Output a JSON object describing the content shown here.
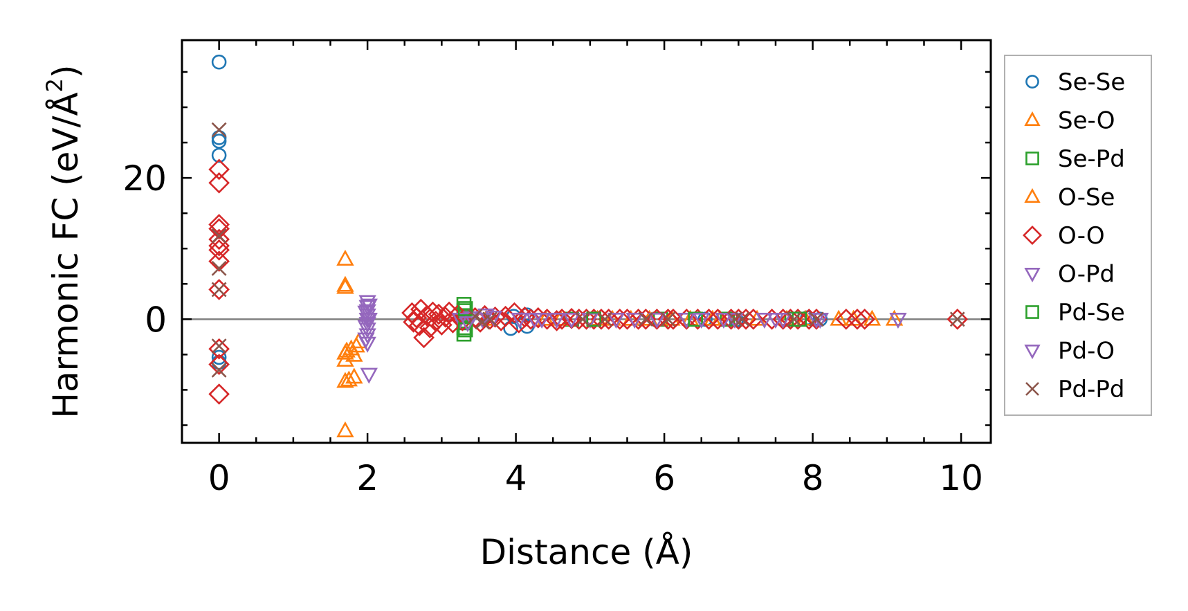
{
  "chart_data": {
    "type": "scatter",
    "xlabel": "Distance (Å)",
    "ylabel_main": "Harmonic FC (eV/Å",
    "ylabel_sup": "2",
    "ylabel_close": ")",
    "xlim": [
      -0.5,
      10.4
    ],
    "ylim": [
      -17.5,
      39.5
    ],
    "xticks": [
      0,
      2,
      4,
      6,
      8,
      10
    ],
    "yticks": [
      0,
      20
    ],
    "xtick_labels": [
      "0",
      "2",
      "4",
      "6",
      "8",
      "10"
    ],
    "ytick_labels": [
      "0",
      "20"
    ],
    "x_minor_step": 0.5,
    "y_minor_step": 5,
    "zero_line": true,
    "legend_position": "outside-right",
    "series": [
      {
        "name": "Se-Se",
        "marker": "circle",
        "color": "#1f77b4",
        "points": [
          [
            0,
            36.4
          ],
          [
            0,
            25.7
          ],
          [
            0,
            25.2
          ],
          [
            0,
            23.2
          ],
          [
            0,
            -5.4
          ],
          [
            0,
            -6.1
          ],
          [
            3.93,
            -1.3
          ],
          [
            3.97,
            0.4
          ],
          [
            4.15,
            0.6
          ],
          [
            4.15,
            -1.0
          ],
          [
            6.55,
            0.0
          ],
          [
            6.97,
            -0.1
          ],
          [
            7.93,
            0.2
          ],
          [
            8.1,
            0.0
          ]
        ]
      },
      {
        "name": "Se-O",
        "marker": "triangle-up",
        "color": "#ff7f0e",
        "points": [
          [
            1.7,
            8.5
          ],
          [
            1.7,
            4.8
          ],
          [
            1.7,
            4.5
          ],
          [
            1.7,
            -4.8
          ],
          [
            1.7,
            -5.8
          ],
          [
            1.7,
            -8.8
          ],
          [
            1.7,
            -15.8
          ],
          [
            1.78,
            -4.2
          ],
          [
            1.82,
            -5.1
          ],
          [
            1.85,
            -3.8
          ],
          [
            1.88,
            -3.2
          ],
          [
            1.82,
            -8.2
          ],
          [
            4.4,
            0.0
          ],
          [
            5.3,
            0.0
          ],
          [
            5.8,
            0.0
          ],
          [
            6.35,
            0.0
          ],
          [
            6.75,
            0.0
          ],
          [
            7.65,
            0.0
          ],
          [
            8.35,
            0.0
          ],
          [
            8.8,
            0.0
          ],
          [
            9.1,
            0.0
          ]
        ]
      },
      {
        "name": "Se-Pd",
        "marker": "square",
        "color": "#2ca02c",
        "points": [
          [
            3.3,
            2.1
          ],
          [
            3.3,
            1.2
          ],
          [
            3.3,
            0.5
          ],
          [
            3.3,
            -0.5
          ],
          [
            3.3,
            -1.2
          ],
          [
            3.3,
            -2.1
          ],
          [
            4.75,
            0.0
          ],
          [
            5.95,
            0.0
          ],
          [
            6.85,
            0.0
          ],
          [
            7.72,
            0.0
          ]
        ]
      },
      {
        "name": "O-Se",
        "marker": "triangle-up",
        "color": "#ff7f0e",
        "points": [
          [
            1.72,
            -4.5
          ],
          [
            1.75,
            -8.6
          ],
          [
            3.6,
            0.0
          ],
          [
            4.6,
            0.0
          ],
          [
            5.1,
            0.0
          ],
          [
            5.55,
            0.0
          ],
          [
            6.1,
            0.0
          ],
          [
            6.65,
            0.0
          ],
          [
            7.25,
            0.0
          ],
          [
            7.9,
            0.0
          ],
          [
            8.55,
            0.0
          ]
        ]
      },
      {
        "name": "O-O",
        "marker": "diamond",
        "color": "#d62728",
        "points": [
          [
            0,
            21.2
          ],
          [
            0,
            19.3
          ],
          [
            0,
            13.4
          ],
          [
            0,
            12.8
          ],
          [
            0,
            11.3
          ],
          [
            0,
            10.4
          ],
          [
            0,
            9.8
          ],
          [
            0,
            8.2
          ],
          [
            0,
            4.2
          ],
          [
            0,
            -4.2
          ],
          [
            0,
            -6.4
          ],
          [
            0,
            -10.6
          ],
          [
            2.6,
            0.9
          ],
          [
            2.62,
            -0.4
          ],
          [
            2.66,
            0.2
          ],
          [
            2.7,
            -0.9
          ],
          [
            2.72,
            1.4
          ],
          [
            2.76,
            -2.6
          ],
          [
            2.8,
            0.5
          ],
          [
            2.84,
            -1.2
          ],
          [
            2.88,
            1.0
          ],
          [
            2.92,
            -0.3
          ],
          [
            2.96,
            0.7
          ],
          [
            3.0,
            -0.8
          ],
          [
            3.05,
            0.3
          ],
          [
            3.1,
            1.0
          ],
          [
            3.15,
            -0.5
          ],
          [
            3.22,
            0.6
          ],
          [
            3.28,
            -0.2
          ],
          [
            3.45,
            0.2
          ],
          [
            3.52,
            -0.4
          ],
          [
            3.58,
            0.5
          ],
          [
            3.65,
            0.0
          ],
          [
            3.72,
            0.3
          ],
          [
            3.8,
            -0.2
          ],
          [
            3.86,
            0.4
          ],
          [
            3.98,
            0.9
          ],
          [
            4.04,
            -0.5
          ],
          [
            4.12,
            0.3
          ],
          [
            4.2,
            0.0
          ],
          [
            4.3,
            0.2
          ],
          [
            4.42,
            0.0
          ],
          [
            4.55,
            -0.2
          ],
          [
            4.62,
            0.0
          ],
          [
            4.75,
            0.1
          ],
          [
            4.85,
            0.0
          ],
          [
            4.95,
            0.0
          ],
          [
            5.05,
            0.0
          ],
          [
            5.15,
            0.0
          ],
          [
            5.25,
            0.0
          ],
          [
            5.4,
            0.0
          ],
          [
            5.5,
            0.0
          ],
          [
            5.65,
            0.0
          ],
          [
            5.75,
            0.0
          ],
          [
            5.9,
            0.0
          ],
          [
            6.05,
            0.0
          ],
          [
            6.12,
            0.0
          ],
          [
            6.3,
            0.0
          ],
          [
            6.45,
            0.0
          ],
          [
            6.6,
            0.0
          ],
          [
            6.72,
            0.0
          ],
          [
            6.9,
            0.0
          ],
          [
            7.0,
            0.0
          ],
          [
            7.1,
            0.0
          ],
          [
            7.2,
            0.0
          ],
          [
            7.45,
            0.0
          ],
          [
            7.6,
            0.0
          ],
          [
            7.7,
            0.0
          ],
          [
            7.8,
            0.0
          ],
          [
            7.95,
            0.0
          ],
          [
            8.05,
            0.0
          ],
          [
            8.45,
            0.0
          ],
          [
            8.6,
            0.0
          ],
          [
            8.7,
            0.0
          ],
          [
            9.95,
            0.0
          ]
        ]
      },
      {
        "name": "O-Pd",
        "marker": "triangle-down",
        "color": "#9467bd",
        "points": [
          [
            2.0,
            2.5
          ],
          [
            2.0,
            1.8
          ],
          [
            2.0,
            1.2
          ],
          [
            2.0,
            0.6
          ],
          [
            2.0,
            0.0
          ],
          [
            2.0,
            -0.6
          ],
          [
            2.0,
            -1.4
          ],
          [
            2.0,
            -2.2
          ],
          [
            2.0,
            -3.4
          ],
          [
            2.02,
            -7.8
          ],
          [
            3.25,
            0.0
          ],
          [
            3.4,
            0.2
          ],
          [
            3.55,
            0.0
          ],
          [
            3.7,
            0.3
          ],
          [
            4.05,
            0.0
          ],
          [
            4.35,
            0.0
          ],
          [
            4.55,
            0.0
          ],
          [
            5.0,
            0.0
          ],
          [
            5.35,
            0.0
          ],
          [
            5.9,
            0.0
          ],
          [
            6.3,
            0.0
          ],
          [
            6.8,
            0.0
          ],
          [
            7.35,
            0.0
          ],
          [
            7.6,
            0.0
          ],
          [
            8.1,
            0.0
          ],
          [
            9.15,
            0.0
          ]
        ]
      },
      {
        "name": "Pd-Se",
        "marker": "square",
        "color": "#2ca02c",
        "points": [
          [
            3.32,
            1.5
          ],
          [
            3.32,
            -1.5
          ],
          [
            5.05,
            0.0
          ],
          [
            6.42,
            0.0
          ],
          [
            7.82,
            0.0
          ]
        ]
      },
      {
        "name": "Pd-O",
        "marker": "triangle-down",
        "color": "#9467bd",
        "points": [
          [
            1.98,
            1.0
          ],
          [
            1.98,
            -1.0
          ],
          [
            1.98,
            -2.8
          ],
          [
            2.02,
            2.0
          ],
          [
            2.02,
            0.0
          ],
          [
            3.35,
            -0.5
          ],
          [
            3.6,
            0.6
          ],
          [
            4.25,
            0.0
          ],
          [
            4.75,
            0.0
          ],
          [
            5.6,
            0.0
          ],
          [
            6.5,
            0.0
          ],
          [
            6.95,
            0.0
          ],
          [
            7.5,
            0.0
          ],
          [
            8.05,
            0.0
          ]
        ]
      },
      {
        "name": "Pd-Pd",
        "marker": "x",
        "color": "#8c564b",
        "points": [
          [
            0,
            26.8
          ],
          [
            0,
            11.8
          ],
          [
            0,
            7.2
          ],
          [
            0,
            4.2
          ],
          [
            0,
            -3.8
          ],
          [
            0,
            -7.2
          ],
          [
            3.45,
            0.4
          ],
          [
            3.55,
            -0.4
          ],
          [
            3.65,
            0.0
          ],
          [
            4.9,
            0.0
          ],
          [
            5.2,
            0.0
          ],
          [
            5.75,
            0.0
          ],
          [
            6.05,
            0.0
          ],
          [
            6.95,
            0.0
          ],
          [
            7.05,
            0.0
          ],
          [
            7.75,
            0.0
          ],
          [
            8.05,
            0.0
          ],
          [
            9.95,
            0.0
          ]
        ]
      }
    ]
  }
}
